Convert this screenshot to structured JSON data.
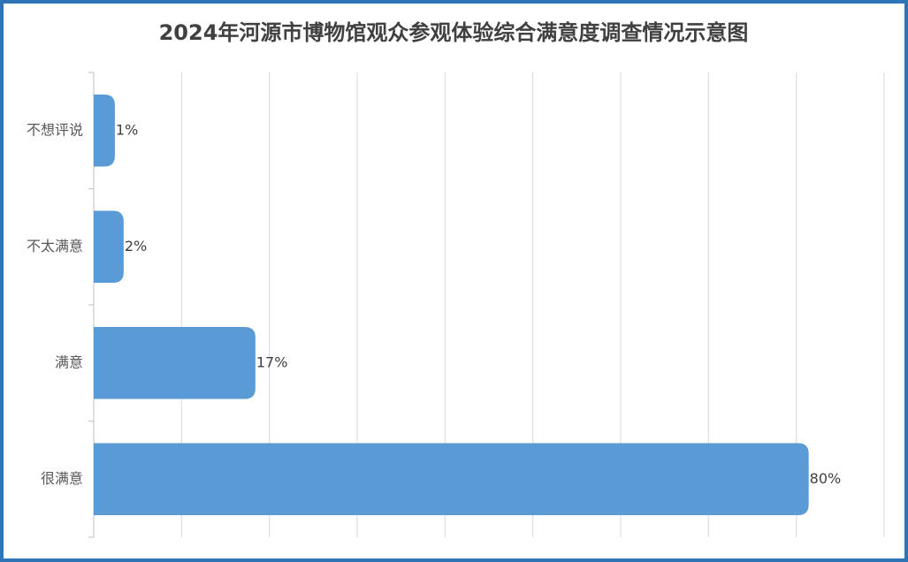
{
  "chart_data": {
    "type": "bar",
    "orientation": "horizontal",
    "title": "2024年河源市博物馆观众参观体验综合满意度调查情况示意图",
    "categories": [
      "不想评说",
      "不太满意",
      "满意",
      "很满意"
    ],
    "values": [
      1,
      2,
      17,
      80
    ],
    "value_labels": [
      "1%",
      "2%",
      "17%",
      "80%"
    ],
    "color": "#5b9bd5",
    "xlim": [
      0,
      90
    ],
    "xticks": [
      0,
      10,
      20,
      30,
      40,
      50,
      60,
      70,
      80,
      90
    ],
    "grid": true
  }
}
